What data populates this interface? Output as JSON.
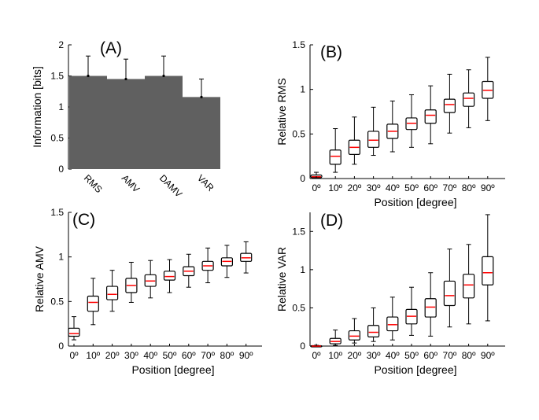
{
  "chart_data": [
    {
      "panel": "(A)",
      "type": "bar",
      "ylabel": "Information [bits]",
      "xlabel": "",
      "ylim": [
        0,
        2
      ],
      "yticks": [
        "0",
        "0.5",
        "1",
        "1.5",
        "2"
      ],
      "categories": [
        "RMS",
        "AMV",
        "DAMV",
        "VAR"
      ],
      "values": [
        1.5,
        1.45,
        1.5,
        1.16
      ],
      "error_upper": [
        1.82,
        1.77,
        1.82,
        1.45
      ],
      "bar_color": "#606060",
      "grid": false
    },
    {
      "panel": "(B)",
      "type": "box",
      "ylabel": "Relative RMS",
      "xlabel": "Position [degree]",
      "ylim": [
        0,
        1.5
      ],
      "yticks": [
        "0",
        "0.5",
        "1",
        "1.5"
      ],
      "categories": [
        "0º",
        "10º",
        "20º",
        "30º",
        "40º",
        "50º",
        "60º",
        "70º",
        "80º",
        "90º"
      ],
      "boxes": [
        {
          "min": 0.0,
          "q1": 0.01,
          "median": 0.02,
          "q3": 0.04,
          "max": 0.07
        },
        {
          "min": 0.07,
          "q1": 0.16,
          "median": 0.25,
          "q3": 0.32,
          "max": 0.56
        },
        {
          "min": 0.16,
          "q1": 0.27,
          "median": 0.35,
          "q3": 0.43,
          "max": 0.69
        },
        {
          "min": 0.26,
          "q1": 0.35,
          "median": 0.43,
          "q3": 0.53,
          "max": 0.8
        },
        {
          "min": 0.3,
          "q1": 0.45,
          "median": 0.53,
          "q3": 0.61,
          "max": 0.87
        },
        {
          "min": 0.35,
          "q1": 0.55,
          "median": 0.62,
          "q3": 0.68,
          "max": 0.94
        },
        {
          "min": 0.39,
          "q1": 0.62,
          "median": 0.71,
          "q3": 0.77,
          "max": 1.04
        },
        {
          "min": 0.51,
          "q1": 0.74,
          "median": 0.83,
          "q3": 0.89,
          "max": 1.17
        },
        {
          "min": 0.57,
          "q1": 0.81,
          "median": 0.9,
          "q3": 0.96,
          "max": 1.22
        },
        {
          "min": 0.65,
          "q1": 0.9,
          "median": 0.99,
          "q3": 1.09,
          "max": 1.36
        }
      ],
      "median_color": "#ff0000"
    },
    {
      "panel": "(C)",
      "type": "box",
      "ylabel": "Relative AMV",
      "xlabel": "Position [degree]",
      "ylim": [
        0,
        1.5
      ],
      "yticks": [
        "0",
        "0.5",
        "1",
        "1.5"
      ],
      "categories": [
        "0º",
        "10º",
        "20º",
        "30º",
        "40º",
        "50º",
        "60º",
        "70º",
        "80º",
        "90º"
      ],
      "boxes": [
        {
          "min": 0.07,
          "q1": 0.11,
          "median": 0.14,
          "q3": 0.2,
          "max": 0.33
        },
        {
          "min": 0.24,
          "q1": 0.39,
          "median": 0.49,
          "q3": 0.56,
          "max": 0.76
        },
        {
          "min": 0.39,
          "q1": 0.52,
          "median": 0.58,
          "q3": 0.67,
          "max": 0.85
        },
        {
          "min": 0.49,
          "q1": 0.6,
          "median": 0.68,
          "q3": 0.76,
          "max": 0.94
        },
        {
          "min": 0.54,
          "q1": 0.67,
          "median": 0.73,
          "q3": 0.8,
          "max": 0.96
        },
        {
          "min": 0.6,
          "q1": 0.74,
          "median": 0.78,
          "q3": 0.84,
          "max": 0.97
        },
        {
          "min": 0.66,
          "q1": 0.79,
          "median": 0.84,
          "q3": 0.89,
          "max": 1.03
        },
        {
          "min": 0.71,
          "q1": 0.85,
          "median": 0.9,
          "q3": 0.95,
          "max": 1.1
        },
        {
          "min": 0.77,
          "q1": 0.9,
          "median": 0.95,
          "q3": 0.99,
          "max": 1.13
        },
        {
          "min": 0.82,
          "q1": 0.95,
          "median": 0.99,
          "q3": 1.04,
          "max": 1.17
        }
      ],
      "median_color": "#ff0000"
    },
    {
      "panel": "(D)",
      "type": "box",
      "ylabel": "Relative VAR",
      "xlabel": "Position [degree]",
      "ylim": [
        0,
        1.75
      ],
      "yticks": [
        "0",
        "0.5",
        "1",
        "1.5"
      ],
      "categories": [
        "0º",
        "10º",
        "20º",
        "30º",
        "40º",
        "50º",
        "60º",
        "70º",
        "80º",
        "90º"
      ],
      "boxes": [
        {
          "min": 0.0,
          "q1": 0.0,
          "median": 0.0,
          "q3": 0.005,
          "max": 0.01
        },
        {
          "min": 0.01,
          "q1": 0.03,
          "median": 0.06,
          "q3": 0.1,
          "max": 0.21
        },
        {
          "min": 0.04,
          "q1": 0.08,
          "median": 0.13,
          "q3": 0.2,
          "max": 0.36
        },
        {
          "min": 0.06,
          "q1": 0.12,
          "median": 0.18,
          "q3": 0.27,
          "max": 0.5
        },
        {
          "min": 0.08,
          "q1": 0.2,
          "median": 0.28,
          "q3": 0.38,
          "max": 0.64
        },
        {
          "min": 0.14,
          "q1": 0.29,
          "median": 0.39,
          "q3": 0.48,
          "max": 0.77
        },
        {
          "min": 0.13,
          "q1": 0.38,
          "median": 0.51,
          "q3": 0.62,
          "max": 0.96
        },
        {
          "min": 0.25,
          "q1": 0.53,
          "median": 0.66,
          "q3": 0.85,
          "max": 1.27
        },
        {
          "min": 0.29,
          "q1": 0.63,
          "median": 0.8,
          "q3": 0.94,
          "max": 1.33
        },
        {
          "min": 0.33,
          "q1": 0.8,
          "median": 0.96,
          "q3": 1.17,
          "max": 1.72
        }
      ],
      "median_color": "#ff0000"
    }
  ]
}
